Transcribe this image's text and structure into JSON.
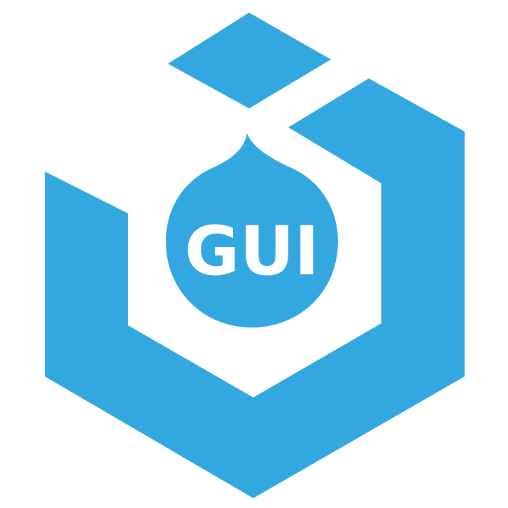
{
  "logo": {
    "text": "GUI",
    "primary_color": "#33a8e0",
    "background_color": "#ffffff",
    "icon": "hexagon-cube-drop-icon"
  }
}
